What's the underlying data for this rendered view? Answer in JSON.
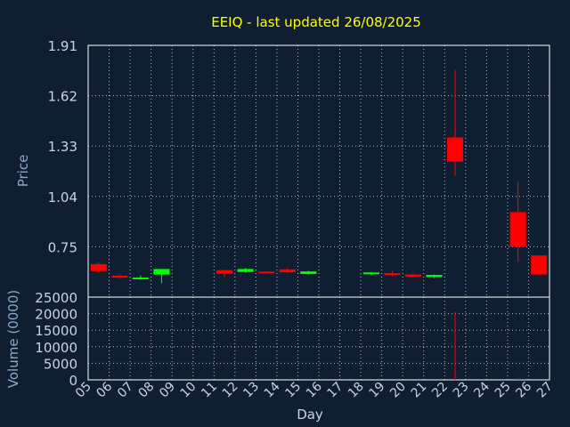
{
  "chart_data": {
    "type": "candlestick",
    "title": "EEIQ - last updated 26/08/2025",
    "xlabel": "Day",
    "price_panel": {
      "ylabel": "Price",
      "yticks": [
        "1.91",
        "1.62",
        "1.33",
        "1.04",
        "0.75"
      ],
      "ylim": [
        0.46,
        1.91
      ]
    },
    "volume_panel": {
      "ylabel": "Volume (0000)",
      "yticks": [
        "25000",
        "20000",
        "15000",
        "10000",
        "5000",
        "0"
      ],
      "ylim": [
        0,
        25000
      ]
    },
    "x_tick_labels": [
      "05",
      "06",
      "07",
      "08",
      "09",
      "10",
      "11",
      "12",
      "13",
      "14",
      "15",
      "16",
      "17",
      "18",
      "19",
      "20",
      "21",
      "22",
      "23",
      "24",
      "25",
      "26",
      "27"
    ],
    "grid": true,
    "colors": {
      "up": "#00ff00",
      "down": "#ff0000",
      "text": "#ffff00",
      "axis_label": "#8aa8c8",
      "tick": "#c8d4e0",
      "grid": "#ffffff",
      "background": "#0f1f31"
    },
    "candles": [
      {
        "day": 0,
        "open": 0.65,
        "high": 0.66,
        "low": 0.6,
        "close": 0.61,
        "volume": 0
      },
      {
        "day": 1,
        "open": 0.583,
        "high": 0.59,
        "low": 0.566,
        "close": 0.577,
        "volume": 0
      },
      {
        "day": 2,
        "open": 0.567,
        "high": 0.585,
        "low": 0.56,
        "close": 0.573,
        "volume": 0
      },
      {
        "day": 3,
        "open": 0.59,
        "high": 0.618,
        "low": 0.54,
        "close": 0.622,
        "volume": 0
      },
      {
        "day": 6,
        "open": 0.615,
        "high": 0.618,
        "low": 0.575,
        "close": 0.595,
        "volume": 0
      },
      {
        "day": 7,
        "open": 0.605,
        "high": 0.628,
        "low": 0.6,
        "close": 0.622,
        "volume": 0
      },
      {
        "day": 8,
        "open": 0.607,
        "high": 0.61,
        "low": 0.6,
        "close": 0.602,
        "volume": 0
      },
      {
        "day": 9,
        "open": 0.62,
        "high": 0.628,
        "low": 0.598,
        "close": 0.603,
        "volume": 0
      },
      {
        "day": 10,
        "open": 0.593,
        "high": 0.612,
        "low": 0.588,
        "close": 0.608,
        "volume": 0
      },
      {
        "day": 13,
        "open": 0.593,
        "high": 0.605,
        "low": 0.588,
        "close": 0.602,
        "volume": 0
      },
      {
        "day": 14,
        "open": 0.598,
        "high": 0.61,
        "low": 0.58,
        "close": 0.588,
        "volume": 0
      },
      {
        "day": 15,
        "open": 0.59,
        "high": 0.596,
        "low": 0.575,
        "close": 0.578,
        "volume": 0
      },
      {
        "day": 16,
        "open": 0.575,
        "high": 0.59,
        "low": 0.57,
        "close": 0.588,
        "volume": 300
      },
      {
        "day": 17,
        "open": 1.38,
        "high": 1.77,
        "low": 1.16,
        "close": 1.24,
        "volume": 20500
      },
      {
        "day": 20,
        "open": 0.95,
        "high": 1.13,
        "low": 0.66,
        "close": 0.75,
        "volume": 500
      },
      {
        "day": 21,
        "open": 0.7,
        "high": 0.7,
        "low": 0.6,
        "close": 0.59,
        "volume": 0
      }
    ]
  }
}
